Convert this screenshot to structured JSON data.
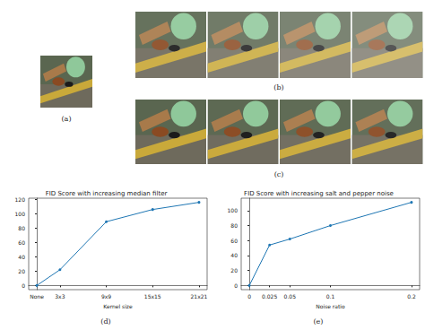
{
  "image_panels": [
    "(a)",
    "(b)",
    "(c)"
  ],
  "chart_data": [
    {
      "type": "line",
      "title": "FID Score with increasing median filter",
      "x_label": "Kernel size",
      "annotation": "(d)",
      "x": [
        0,
        3,
        9,
        15,
        21
      ],
      "values": [
        0,
        22,
        89,
        106,
        116
      ],
      "color": "#1f77b4",
      "marker": "circle",
      "xlim": [
        -1.05,
        22.05
      ],
      "xticks": [
        {
          "value": 0,
          "label": "None"
        },
        {
          "value": 3,
          "label": "3x3"
        },
        {
          "value": 9,
          "label": "9x9"
        },
        {
          "value": 15,
          "label": "15x15"
        },
        {
          "value": 21,
          "label": "21x21"
        }
      ],
      "ylim": [
        -5.8,
        121.8
      ],
      "yticks": [
        0,
        20,
        40,
        60,
        80,
        100,
        120
      ],
      "grid": false
    },
    {
      "type": "line",
      "title": "FID Score with increasing salt and pepper noise",
      "x_label": "Noise ratio",
      "annotation": "(e)",
      "x": [
        0,
        0.025,
        0.05,
        0.1,
        0.2
      ],
      "values": [
        0,
        54,
        62,
        80,
        111
      ],
      "color": "#1f77b4",
      "marker": "circle",
      "xlim": [
        -0.01,
        0.21
      ],
      "xticks": [
        0,
        0.025,
        0.05,
        0.1,
        0.2
      ],
      "ylim": [
        -5.55,
        116.55
      ],
      "yticks": [
        0,
        20,
        40,
        60,
        80,
        100
      ],
      "grid": false
    }
  ]
}
